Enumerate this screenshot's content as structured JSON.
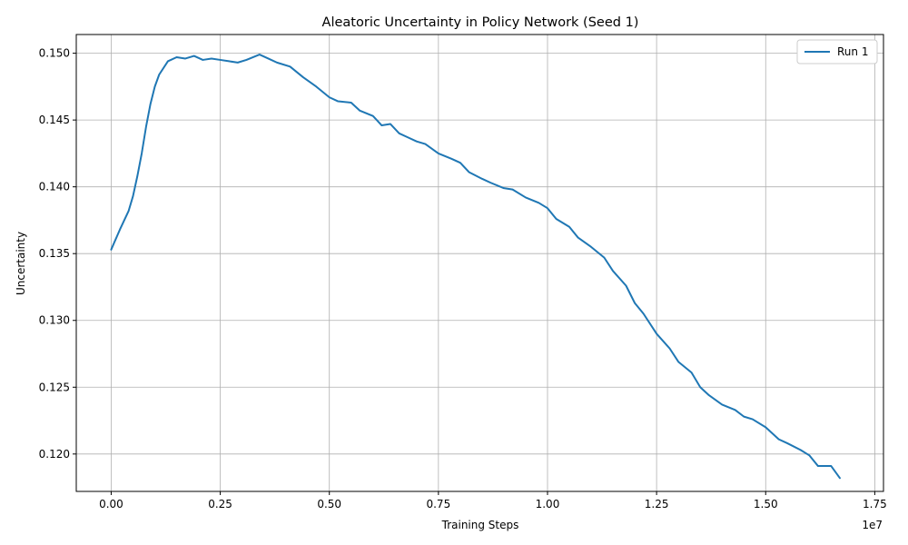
{
  "chart_data": {
    "type": "line",
    "title": "Aleatoric Uncertainty in Policy Network (Seed 1)",
    "xlabel": "Training Steps",
    "ylabel": "Uncertainty",
    "x_offset_label": "1e7",
    "xlim": [
      -800000,
      17700000
    ],
    "ylim": [
      0.1172,
      0.1514
    ],
    "x_ticks": [
      0,
      2500000,
      5000000,
      7500000,
      10000000,
      12500000,
      15000000,
      17500000
    ],
    "x_tick_labels": [
      "0.00",
      "0.25",
      "0.50",
      "0.75",
      "1.00",
      "1.25",
      "1.50",
      "1.75"
    ],
    "y_ticks": [
      0.12,
      0.125,
      0.13,
      0.135,
      0.14,
      0.145,
      0.15
    ],
    "y_tick_labels": [
      "0.120",
      "0.125",
      "0.130",
      "0.135",
      "0.140",
      "0.145",
      "0.150"
    ],
    "grid": true,
    "legend_position": "top-right",
    "series": [
      {
        "name": "Run 1",
        "color": "#1f77b4",
        "x": [
          0,
          200000,
          400000,
          500000,
          600000,
          700000,
          800000,
          900000,
          1000000,
          1100000,
          1300000,
          1500000,
          1700000,
          1900000,
          2100000,
          2300000,
          2500000,
          2700000,
          2900000,
          3100000,
          3400000,
          3600000,
          3800000,
          4100000,
          4400000,
          4700000,
          5000000,
          5200000,
          5500000,
          5700000,
          6000000,
          6200000,
          6400000,
          6600000,
          6800000,
          7000000,
          7200000,
          7500000,
          7800000,
          8000000,
          8200000,
          8500000,
          8700000,
          9000000,
          9200000,
          9500000,
          9800000,
          10000000,
          10200000,
          10500000,
          10700000,
          11000000,
          11300000,
          11500000,
          11800000,
          12000000,
          12200000,
          12500000,
          12800000,
          13000000,
          13300000,
          13500000,
          13700000,
          14000000,
          14300000,
          14500000,
          14700000,
          15000000,
          15300000,
          15500000,
          15800000,
          16000000,
          16200000,
          16500000,
          16700000
        ],
        "y": [
          0.1353,
          0.1368,
          0.1382,
          0.1393,
          0.1408,
          0.1425,
          0.1445,
          0.1462,
          0.1475,
          0.1484,
          0.1494,
          0.1497,
          0.1496,
          0.1498,
          0.1495,
          0.1496,
          0.1495,
          0.1494,
          0.1493,
          0.1495,
          0.1499,
          0.1496,
          0.1493,
          0.149,
          0.1482,
          0.1475,
          0.1467,
          0.1464,
          0.1463,
          0.1457,
          0.1453,
          0.1446,
          0.1447,
          0.144,
          0.1437,
          0.1434,
          0.1432,
          0.1425,
          0.1421,
          0.1418,
          0.1411,
          0.1406,
          0.1403,
          0.1399,
          0.1398,
          0.1392,
          0.1388,
          0.1384,
          0.1376,
          0.137,
          0.1362,
          0.1355,
          0.1347,
          0.1337,
          0.1326,
          0.1313,
          0.1305,
          0.129,
          0.1279,
          0.1269,
          0.1261,
          0.125,
          0.1244,
          0.1237,
          0.1233,
          0.1228,
          0.1226,
          0.122,
          0.1211,
          0.1208,
          0.1203,
          0.1199,
          0.1191,
          0.1191,
          0.1182
        ]
      }
    ]
  }
}
